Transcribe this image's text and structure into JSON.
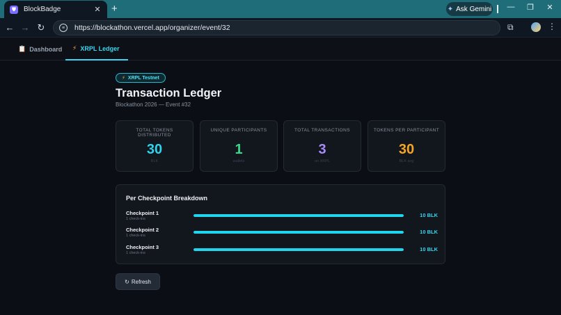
{
  "browser": {
    "tab_title": "BlockBadge",
    "tab_close": "✕",
    "new_tab": "+",
    "url": "https://blockathon.vercel.app/organizer/event/32",
    "ask_gemini": "Ask Gemini",
    "minimize": "—",
    "restore": "❐",
    "close": "✕"
  },
  "nav": {
    "tabs": [
      {
        "label": "Dashboard",
        "icon": "clipboard-icon",
        "active": false
      },
      {
        "label": "XRPL Ledger",
        "icon": "lightning-icon",
        "active": true
      }
    ]
  },
  "header": {
    "badge": "XRPL Testnet",
    "title": "Transaction Ledger",
    "subtitle": "Blockathon 2026 — Event #32"
  },
  "stats": [
    {
      "label": "TOTAL TOKENS DISTRIBUTED",
      "value": "30",
      "sub": "BLK",
      "color": "#2fd3ec"
    },
    {
      "label": "UNIQUE PARTICIPANTS",
      "value": "1",
      "sub": "wallets",
      "color": "#39d98a"
    },
    {
      "label": "TOTAL TRANSACTIONS",
      "value": "3",
      "sub": "on XRPL",
      "color": "#a78bfa"
    },
    {
      "label": "TOKENS PER PARTICIPANT",
      "value": "30",
      "sub": "BLK avg",
      "color": "#f5a524"
    }
  ],
  "breakdown": {
    "title": "Per Checkpoint Breakdown",
    "checkpoints": [
      {
        "name": "Checkpoint 1",
        "sub": "1 check-ins",
        "amount": "10 BLK",
        "fill": 1.0
      },
      {
        "name": "Checkpoint 2",
        "sub": "1 check-ins",
        "amount": "10 BLK",
        "fill": 1.0
      },
      {
        "name": "Checkpoint 3",
        "sub": "1 check-ins",
        "amount": "10 BLK",
        "fill": 1.0
      }
    ]
  },
  "actions": {
    "refresh": "Refresh"
  }
}
